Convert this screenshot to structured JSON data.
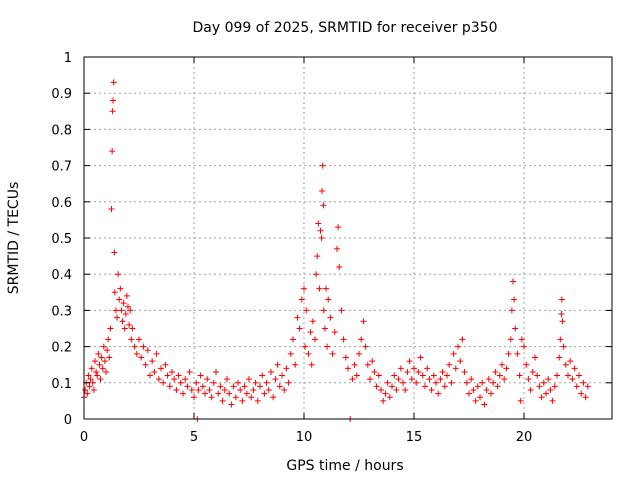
{
  "chart_data": {
    "type": "scatter",
    "title": "Day 099 of 2025, SRMTID for receiver p350",
    "xlabel": "GPS time / hours",
    "ylabel": "SRMTID / TECUs",
    "xlim": [
      0,
      24
    ],
    "ylim": [
      0,
      1
    ],
    "xticks": [
      0,
      5,
      10,
      15,
      20
    ],
    "xtick_labels": [
      "0",
      "5",
      "10",
      "15",
      "20"
    ],
    "yticks": [
      0,
      0.1,
      0.2,
      0.3,
      0.4,
      0.5,
      0.6,
      0.7,
      0.8,
      0.9,
      1
    ],
    "ytick_labels": [
      "0",
      "0.1",
      "0.2",
      "0.3",
      "0.4",
      "0.5",
      "0.6",
      "0.7",
      "0.8",
      "0.9",
      "1"
    ],
    "grid": true,
    "marker": "+",
    "color": "#ff0000",
    "series": [
      {
        "name": "SRMTID",
        "points": [
          [
            0.0,
            0.06
          ],
          [
            0.05,
            0.08
          ],
          [
            0.1,
            0.1
          ],
          [
            0.15,
            0.07
          ],
          [
            0.2,
            0.12
          ],
          [
            0.25,
            0.09
          ],
          [
            0.3,
            0.11
          ],
          [
            0.35,
            0.14
          ],
          [
            0.4,
            0.1
          ],
          [
            0.45,
            0.08
          ],
          [
            0.5,
            0.16
          ],
          [
            0.55,
            0.13
          ],
          [
            0.6,
            0.12
          ],
          [
            0.65,
            0.18
          ],
          [
            0.7,
            0.15
          ],
          [
            0.75,
            0.11
          ],
          [
            0.8,
            0.17
          ],
          [
            0.85,
            0.14
          ],
          [
            0.9,
            0.2
          ],
          [
            0.95,
            0.16
          ],
          [
            1.0,
            0.13
          ],
          [
            1.05,
            0.19
          ],
          [
            1.1,
            0.22
          ],
          [
            1.15,
            0.17
          ],
          [
            1.2,
            0.25
          ],
          [
            1.25,
            0.58
          ],
          [
            1.28,
            0.74
          ],
          [
            1.3,
            0.85
          ],
          [
            1.32,
            0.88
          ],
          [
            1.35,
            0.93
          ],
          [
            1.38,
            0.46
          ],
          [
            1.4,
            0.35
          ],
          [
            1.45,
            0.3
          ],
          [
            1.5,
            0.28
          ],
          [
            1.55,
            0.4
          ],
          [
            1.6,
            0.33
          ],
          [
            1.65,
            0.36
          ],
          [
            1.7,
            0.3
          ],
          [
            1.75,
            0.27
          ],
          [
            1.8,
            0.32
          ],
          [
            1.85,
            0.25
          ],
          [
            1.9,
            0.29
          ],
          [
            1.95,
            0.34
          ],
          [
            2.0,
            0.31
          ],
          [
            2.05,
            0.26
          ],
          [
            2.1,
            0.3
          ],
          [
            2.15,
            0.22
          ],
          [
            2.2,
            0.25
          ],
          [
            2.3,
            0.2
          ],
          [
            2.4,
            0.18
          ],
          [
            2.5,
            0.22
          ],
          [
            2.6,
            0.17
          ],
          [
            2.7,
            0.2
          ],
          [
            2.8,
            0.15
          ],
          [
            2.9,
            0.19
          ],
          [
            3.0,
            0.12
          ],
          [
            3.1,
            0.16
          ],
          [
            3.2,
            0.13
          ],
          [
            3.3,
            0.18
          ],
          [
            3.4,
            0.11
          ],
          [
            3.5,
            0.14
          ],
          [
            3.6,
            0.1
          ],
          [
            3.7,
            0.15
          ],
          [
            3.8,
            0.12
          ],
          [
            3.9,
            0.09
          ],
          [
            4.0,
            0.13
          ],
          [
            4.1,
            0.11
          ],
          [
            4.2,
            0.08
          ],
          [
            4.3,
            0.12
          ],
          [
            4.4,
            0.1
          ],
          [
            4.5,
            0.07
          ],
          [
            4.6,
            0.11
          ],
          [
            4.7,
            0.09
          ],
          [
            4.8,
            0.13
          ],
          [
            4.9,
            0.08
          ],
          [
            5.0,
            0.06
          ],
          [
            5.1,
            0.1
          ],
          [
            5.15,
            0.0
          ],
          [
            5.2,
            0.08
          ],
          [
            5.3,
            0.12
          ],
          [
            5.4,
            0.09
          ],
          [
            5.5,
            0.07
          ],
          [
            5.6,
            0.11
          ],
          [
            5.7,
            0.08
          ],
          [
            5.8,
            0.06
          ],
          [
            5.9,
            0.1
          ],
          [
            6.0,
            0.13
          ],
          [
            6.1,
            0.07
          ],
          [
            6.2,
            0.09
          ],
          [
            6.3,
            0.05
          ],
          [
            6.4,
            0.08
          ],
          [
            6.5,
            0.11
          ],
          [
            6.6,
            0.07
          ],
          [
            6.7,
            0.04
          ],
          [
            6.8,
            0.09
          ],
          [
            6.9,
            0.06
          ],
          [
            7.0,
            0.1
          ],
          [
            7.1,
            0.08
          ],
          [
            7.2,
            0.05
          ],
          [
            7.3,
            0.09
          ],
          [
            7.4,
            0.07
          ],
          [
            7.5,
            0.11
          ],
          [
            7.6,
            0.06
          ],
          [
            7.7,
            0.08
          ],
          [
            7.8,
            0.1
          ],
          [
            7.9,
            0.05
          ],
          [
            8.0,
            0.09
          ],
          [
            8.1,
            0.12
          ],
          [
            8.2,
            0.07
          ],
          [
            8.3,
            0.1
          ],
          [
            8.4,
            0.08
          ],
          [
            8.5,
            0.13
          ],
          [
            8.6,
            0.06
          ],
          [
            8.7,
            0.11
          ],
          [
            8.8,
            0.15
          ],
          [
            8.9,
            0.09
          ],
          [
            9.0,
            0.12
          ],
          [
            9.1,
            0.08
          ],
          [
            9.2,
            0.14
          ],
          [
            9.3,
            0.1
          ],
          [
            9.4,
            0.18
          ],
          [
            9.5,
            0.22
          ],
          [
            9.6,
            0.15
          ],
          [
            9.7,
            0.28
          ],
          [
            9.8,
            0.25
          ],
          [
            9.9,
            0.33
          ],
          [
            10.0,
            0.36
          ],
          [
            10.05,
            0.2
          ],
          [
            10.1,
            0.3
          ],
          [
            10.2,
            0.18
          ],
          [
            10.3,
            0.24
          ],
          [
            10.35,
            0.15
          ],
          [
            10.4,
            0.27
          ],
          [
            10.5,
            0.22
          ],
          [
            10.55,
            0.4
          ],
          [
            10.6,
            0.45
          ],
          [
            10.65,
            0.54
          ],
          [
            10.7,
            0.36
          ],
          [
            10.75,
            0.52
          ],
          [
            10.8,
            0.5
          ],
          [
            10.82,
            0.63
          ],
          [
            10.85,
            0.7
          ],
          [
            10.88,
            0.59
          ],
          [
            10.9,
            0.3
          ],
          [
            10.95,
            0.25
          ],
          [
            11.0,
            0.36
          ],
          [
            11.05,
            0.2
          ],
          [
            11.1,
            0.33
          ],
          [
            11.2,
            0.28
          ],
          [
            11.3,
            0.18
          ],
          [
            11.4,
            0.24
          ],
          [
            11.5,
            0.47
          ],
          [
            11.55,
            0.53
          ],
          [
            11.6,
            0.42
          ],
          [
            11.7,
            0.3
          ],
          [
            11.8,
            0.22
          ],
          [
            11.9,
            0.17
          ],
          [
            12.0,
            0.14
          ],
          [
            12.1,
            0.0
          ],
          [
            12.2,
            0.11
          ],
          [
            12.3,
            0.15
          ],
          [
            12.4,
            0.12
          ],
          [
            12.5,
            0.18
          ],
          [
            12.6,
            0.22
          ],
          [
            12.7,
            0.27
          ],
          [
            12.8,
            0.2
          ],
          [
            12.9,
            0.15
          ],
          [
            13.0,
            0.11
          ],
          [
            13.1,
            0.16
          ],
          [
            13.2,
            0.13
          ],
          [
            13.3,
            0.09
          ],
          [
            13.4,
            0.12
          ],
          [
            13.5,
            0.08
          ],
          [
            13.6,
            0.05
          ],
          [
            13.7,
            0.07
          ],
          [
            13.8,
            0.1
          ],
          [
            13.9,
            0.06
          ],
          [
            14.0,
            0.09
          ],
          [
            14.1,
            0.12
          ],
          [
            14.2,
            0.08
          ],
          [
            14.3,
            0.11
          ],
          [
            14.4,
            0.14
          ],
          [
            14.5,
            0.1
          ],
          [
            14.6,
            0.08
          ],
          [
            14.7,
            0.13
          ],
          [
            14.8,
            0.16
          ],
          [
            14.9,
            0.11
          ],
          [
            15.0,
            0.14
          ],
          [
            15.1,
            0.1
          ],
          [
            15.2,
            0.13
          ],
          [
            15.3,
            0.17
          ],
          [
            15.4,
            0.12
          ],
          [
            15.5,
            0.09
          ],
          [
            15.6,
            0.14
          ],
          [
            15.7,
            0.11
          ],
          [
            15.8,
            0.08
          ],
          [
            15.9,
            0.12
          ],
          [
            16.0,
            0.1
          ],
          [
            16.1,
            0.07
          ],
          [
            16.2,
            0.11
          ],
          [
            16.3,
            0.13
          ],
          [
            16.4,
            0.09
          ],
          [
            16.5,
            0.12
          ],
          [
            16.6,
            0.15
          ],
          [
            16.7,
            0.1
          ],
          [
            16.8,
            0.18
          ],
          [
            16.9,
            0.14
          ],
          [
            17.0,
            0.2
          ],
          [
            17.1,
            0.16
          ],
          [
            17.2,
            0.22
          ],
          [
            17.3,
            0.13
          ],
          [
            17.4,
            0.1
          ],
          [
            17.5,
            0.07
          ],
          [
            17.6,
            0.11
          ],
          [
            17.7,
            0.08
          ],
          [
            17.8,
            0.05
          ],
          [
            17.9,
            0.09
          ],
          [
            18.0,
            0.06
          ],
          [
            18.1,
            0.1
          ],
          [
            18.2,
            0.04
          ],
          [
            18.3,
            0.08
          ],
          [
            18.4,
            0.11
          ],
          [
            18.5,
            0.07
          ],
          [
            18.6,
            0.1
          ],
          [
            18.7,
            0.13
          ],
          [
            18.8,
            0.09
          ],
          [
            18.9,
            0.12
          ],
          [
            19.0,
            0.15
          ],
          [
            19.1,
            0.11
          ],
          [
            19.2,
            0.14
          ],
          [
            19.3,
            0.18
          ],
          [
            19.4,
            0.22
          ],
          [
            19.45,
            0.3
          ],
          [
            19.5,
            0.38
          ],
          [
            19.55,
            0.33
          ],
          [
            19.6,
            0.25
          ],
          [
            19.7,
            0.18
          ],
          [
            19.8,
            0.12
          ],
          [
            19.85,
            0.05
          ],
          [
            19.9,
            0.22
          ],
          [
            20.0,
            0.2
          ],
          [
            20.1,
            0.15
          ],
          [
            20.2,
            0.11
          ],
          [
            20.3,
            0.08
          ],
          [
            20.4,
            0.13
          ],
          [
            20.5,
            0.17
          ],
          [
            20.6,
            0.12
          ],
          [
            20.7,
            0.09
          ],
          [
            20.8,
            0.06
          ],
          [
            20.9,
            0.1
          ],
          [
            21.0,
            0.07
          ],
          [
            21.1,
            0.11
          ],
          [
            21.2,
            0.08
          ],
          [
            21.3,
            0.05
          ],
          [
            21.4,
            0.09
          ],
          [
            21.5,
            0.12
          ],
          [
            21.6,
            0.17
          ],
          [
            21.65,
            0.22
          ],
          [
            21.7,
            0.29
          ],
          [
            21.72,
            0.33
          ],
          [
            21.75,
            0.27
          ],
          [
            21.8,
            0.2
          ],
          [
            21.9,
            0.15
          ],
          [
            22.0,
            0.12
          ],
          [
            22.1,
            0.16
          ],
          [
            22.2,
            0.11
          ],
          [
            22.3,
            0.14
          ],
          [
            22.4,
            0.09
          ],
          [
            22.5,
            0.12
          ],
          [
            22.6,
            0.07
          ],
          [
            22.7,
            0.1
          ],
          [
            22.8,
            0.06
          ],
          [
            22.9,
            0.09
          ]
        ]
      }
    ]
  }
}
